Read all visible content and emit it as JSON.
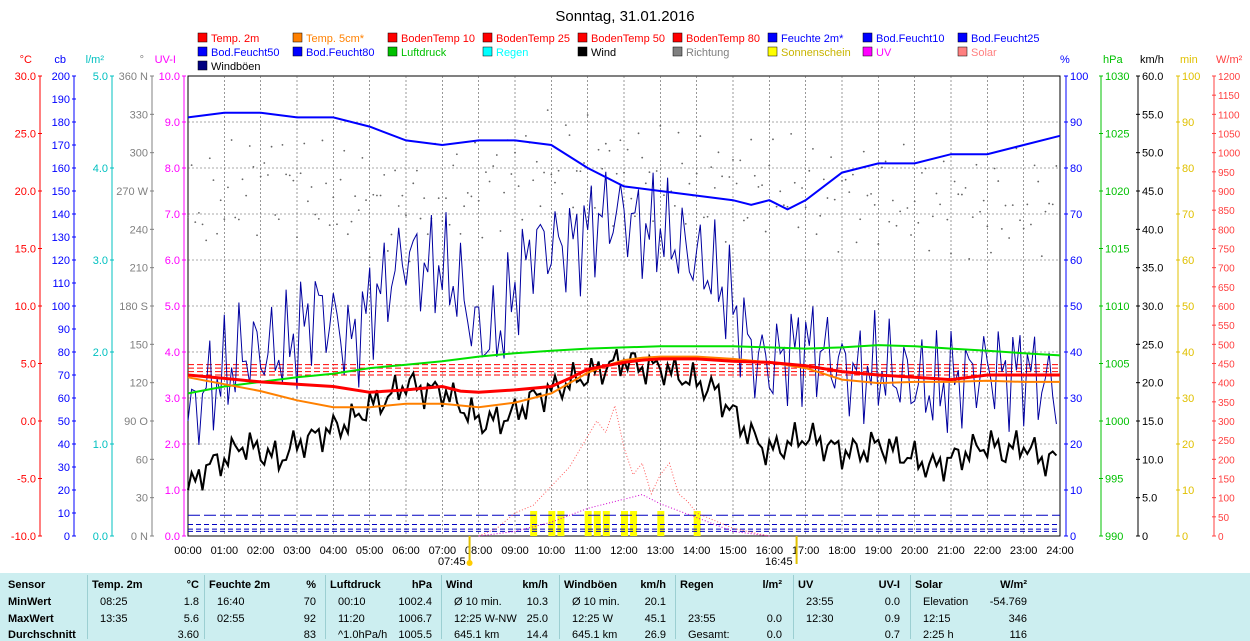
{
  "title": "Sonntag, 31.01.2016",
  "legend": [
    {
      "name": "Temp. 2m",
      "color": "#ff0000"
    },
    {
      "name": "Temp. 5cm*",
      "color": "#ff8000"
    },
    {
      "name": "BodenTemp 10",
      "color": "#ff0000"
    },
    {
      "name": "BodenTemp 25",
      "color": "#ff0000"
    },
    {
      "name": "BodenTemp 50",
      "color": "#ff0000"
    },
    {
      "name": "BodenTemp 80",
      "color": "#ff0000"
    },
    {
      "name": "Feuchte 2m*",
      "color": "#0000ff"
    },
    {
      "name": "Bod.Feucht10",
      "color": "#0000ff"
    },
    {
      "name": "Bod.Feucht25",
      "color": "#0000ff"
    },
    {
      "name": "Bod.Feucht50",
      "color": "#0000ff"
    },
    {
      "name": "Bod.Feucht80",
      "color": "#0000ff"
    },
    {
      "name": "Luftdruck",
      "color": "#00c000"
    },
    {
      "name": "Regen",
      "color": "#00ffff"
    },
    {
      "name": "Wind",
      "color": "#000000"
    },
    {
      "name": "Richtung",
      "color": "#808080"
    },
    {
      "name": "Sonnenschein",
      "color": "#ffff00"
    },
    {
      "name": "UV",
      "color": "#ff00ff"
    },
    {
      "name": "Solar",
      "color": "#ff8080"
    },
    {
      "name": "Windböen",
      "color": "#000080"
    }
  ],
  "axes_left": [
    {
      "unit": "°C",
      "color": "#ff0000",
      "ticks": [
        "30.0",
        "25.0",
        "20.0",
        "15.0",
        "10.0",
        "5.0",
        "0.0",
        "-5.0",
        "-10.0"
      ]
    },
    {
      "unit": "cb",
      "color": "#0000ff",
      "ticks": [
        "200",
        "190",
        "180",
        "170",
        "160",
        "150",
        "140",
        "130",
        "120",
        "110",
        "100",
        "90",
        "80",
        "70",
        "60",
        "50",
        "40",
        "30",
        "20",
        "10",
        "0"
      ]
    },
    {
      "unit": "l/m²",
      "color": "#00c0c0",
      "ticks": [
        "5.0",
        "4.0",
        "3.0",
        "2.0",
        "1.0",
        "0.0"
      ]
    },
    {
      "unit": "°",
      "color": "#808080",
      "ticks": [
        "360 N",
        "330",
        "300",
        "270 W",
        "240",
        "210",
        "180 S",
        "150",
        "120",
        "90 O",
        "60",
        "30",
        "0 N"
      ]
    },
    {
      "unit": "UV-I",
      "color": "#ff00ff",
      "ticks": [
        "10.0",
        "9.0",
        "8.0",
        "7.0",
        "6.0",
        "5.0",
        "4.0",
        "3.0",
        "2.0",
        "1.0",
        "0.0"
      ]
    }
  ],
  "axes_right": [
    {
      "unit": "%",
      "color": "#0000ff",
      "ticks": [
        "100",
        "90",
        "80",
        "70",
        "60",
        "50",
        "40",
        "30",
        "20",
        "10",
        "0"
      ]
    },
    {
      "unit": "hPa",
      "color": "#00c000",
      "ticks": [
        "1030",
        "1025",
        "1020",
        "1015",
        "1010",
        "1005",
        "1000",
        "995",
        "990"
      ]
    },
    {
      "unit": "km/h",
      "color": "#000000",
      "ticks": [
        "60.0",
        "55.0",
        "50.0",
        "45.0",
        "40.0",
        "35.0",
        "30.0",
        "25.0",
        "20.0",
        "15.0",
        "10.0",
        "5.0",
        "0"
      ]
    },
    {
      "unit": "min",
      "color": "#e0c000",
      "ticks": [
        "100",
        "90",
        "80",
        "70",
        "60",
        "50",
        "40",
        "30",
        "20",
        "10",
        "0"
      ]
    },
    {
      "unit": "W/m²",
      "color": "#ff4040",
      "ticks": [
        "1200",
        "1150",
        "1100",
        "1050",
        "1000",
        "950",
        "900",
        "850",
        "800",
        "750",
        "700",
        "650",
        "600",
        "550",
        "500",
        "450",
        "400",
        "350",
        "300",
        "250",
        "200",
        "150",
        "100",
        "50",
        "0"
      ]
    }
  ],
  "x_ticks": [
    "00:00",
    "01:00",
    "02:00",
    "03:00",
    "04:00",
    "05:00",
    "06:00",
    "07:00",
    "08:00",
    "09:00",
    "10:00",
    "11:00",
    "12:00",
    "13:00",
    "14:00",
    "15:00",
    "16:00",
    "17:00",
    "18:00",
    "19:00",
    "20:00",
    "21:00",
    "22:00",
    "23:00",
    "24:00"
  ],
  "sunrise": "07:45",
  "sunset": "16:45",
  "chart_data": {
    "type": "line",
    "title": "Sonntag, 31.01.2016",
    "x_unit": "hour",
    "x_range": [
      0,
      24
    ],
    "grid": true,
    "legend_position": "top",
    "series": [
      {
        "name": "Temp. 2m",
        "unit": "°C",
        "axis": "°C",
        "color": "#ff0000",
        "x": [
          0,
          1,
          2,
          3,
          4,
          5,
          6,
          7,
          7.5,
          8,
          9,
          10,
          10.5,
          11,
          11.5,
          12,
          12.5,
          13,
          14,
          15,
          16,
          17,
          18,
          19,
          20,
          21,
          22,
          23,
          24
        ],
        "y": [
          4.0,
          3.7,
          3.4,
          3.2,
          3.0,
          2.5,
          2.7,
          3.0,
          2.6,
          2.5,
          2.7,
          3.0,
          3.7,
          4.5,
          4.8,
          5.1,
          5.3,
          5.4,
          5.4,
          5.2,
          5.1,
          4.8,
          4.3,
          4.0,
          3.8,
          3.6,
          4.0,
          4.0,
          4.0
        ]
      },
      {
        "name": "Temp. 5cm*",
        "unit": "°C",
        "axis": "°C",
        "color": "#ff8000",
        "x": [
          0,
          1,
          2,
          3,
          4,
          5,
          6,
          7,
          8,
          9,
          10,
          10.5,
          11,
          11.5,
          12,
          12.5,
          13,
          14,
          15,
          16,
          17,
          18,
          19,
          20,
          21,
          22,
          23,
          24
        ],
        "y": [
          3.8,
          3.2,
          2.6,
          1.8,
          1.2,
          1.2,
          1.5,
          1.5,
          1.2,
          1.6,
          2.4,
          3.3,
          4.2,
          4.8,
          5.3,
          5.5,
          5.6,
          5.6,
          5.4,
          5.1,
          4.6,
          3.6,
          3.3,
          3.4,
          3.4,
          3.5,
          3.4,
          3.4
        ]
      },
      {
        "name": "BodenTemp 10",
        "unit": "°C",
        "axis": "°C",
        "color": "#ff0000",
        "x": [
          0,
          24
        ],
        "y": [
          4.9,
          4.9
        ]
      },
      {
        "name": "BodenTemp 25",
        "unit": "°C",
        "axis": "°C",
        "color": "#ff0000",
        "x": [
          0,
          24
        ],
        "y": [
          4.6,
          4.6
        ]
      },
      {
        "name": "BodenTemp 50",
        "unit": "°C",
        "axis": "°C",
        "color": "#ff0000",
        "x": [
          0,
          24
        ],
        "y": [
          4.3,
          4.3
        ]
      },
      {
        "name": "BodenTemp 80",
        "unit": "°C",
        "axis": "°C",
        "color": "#ff0000",
        "x": [
          0,
          24
        ],
        "y": [
          4.0,
          4.0
        ]
      },
      {
        "name": "Feuchte 2m*",
        "unit": "%",
        "axis": "%",
        "color": "#0000ff",
        "x": [
          0,
          1,
          2,
          3,
          4,
          4.5,
          5,
          6,
          7,
          8,
          9,
          10,
          11,
          12,
          13,
          14,
          15,
          15.5,
          16,
          16.5,
          17,
          18,
          19,
          20,
          21,
          22,
          23,
          24
        ],
        "y": [
          91,
          92,
          92,
          91,
          91,
          90,
          89,
          86,
          85,
          86,
          86,
          85,
          80,
          76,
          75,
          74,
          73,
          72,
          73,
          71,
          73,
          79,
          81,
          81,
          83,
          83,
          85,
          87
        ]
      },
      {
        "name": "Bod.Feucht10",
        "unit": "cb",
        "axis": "cb",
        "color": "#0000ff",
        "x": [
          0,
          24
        ],
        "y": [
          9,
          9
        ]
      },
      {
        "name": "Bod.Feucht25",
        "unit": "cb",
        "axis": "cb",
        "color": "#0000ff",
        "x": [
          0,
          24
        ],
        "y": [
          5,
          5
        ]
      },
      {
        "name": "Bod.Feucht50",
        "unit": "cb",
        "axis": "cb",
        "color": "#0000ff",
        "x": [
          0,
          24
        ],
        "y": [
          3,
          3
        ]
      },
      {
        "name": "Bod.Feucht80",
        "unit": "cb",
        "axis": "cb",
        "color": "#0000ff",
        "x": [
          0,
          24
        ],
        "y": [
          2,
          2
        ]
      },
      {
        "name": "Luftdruck",
        "unit": "hPa",
        "axis": "hPa",
        "color": "#00c000",
        "x": [
          0,
          1,
          2,
          3,
          4,
          5,
          6,
          7,
          8,
          9,
          10,
          11,
          12,
          13,
          14,
          15,
          16,
          17,
          18,
          19,
          20,
          21,
          22,
          23,
          24
        ],
        "y": [
          1002.4,
          1003.0,
          1003.4,
          1003.8,
          1004.1,
          1004.6,
          1004.9,
          1005.2,
          1005.6,
          1005.9,
          1006.1,
          1006.3,
          1006.4,
          1006.5,
          1006.5,
          1006.5,
          1006.4,
          1006.3,
          1006.4,
          1006.6,
          1006.5,
          1006.3,
          1006.1,
          1005.9,
          1005.7
        ]
      },
      {
        "name": "Wind",
        "unit": "km/h",
        "axis": "km/h",
        "color": "#000000",
        "x": [
          0,
          0.5,
          1,
          1.5,
          2,
          2.5,
          3,
          3.5,
          4,
          4.5,
          5,
          5.5,
          6,
          6.5,
          7,
          7.5,
          8,
          8.5,
          9,
          9.5,
          10,
          10.5,
          11,
          11.5,
          12,
          12.5,
          13,
          13.5,
          14,
          14.5,
          15,
          15.5,
          16,
          16.5,
          17,
          17.5,
          18,
          18.5,
          19,
          19.5,
          20,
          20.5,
          21,
          21.5,
          22,
          22.5,
          23,
          23.5,
          24
        ],
        "y": [
          6,
          9,
          10,
          12,
          11,
          10,
          12,
          13,
          14,
          15,
          17,
          18,
          20,
          19,
          19,
          17,
          15,
          15,
          16,
          18,
          19,
          20,
          21,
          22,
          23,
          22,
          22,
          21,
          20,
          19,
          16,
          13,
          11,
          12,
          13,
          12,
          11,
          11,
          12,
          11,
          10,
          9,
          10,
          11,
          12,
          11,
          12,
          10,
          10
        ]
      },
      {
        "name": "Windböen",
        "unit": "km/h",
        "axis": "km/h",
        "color": "#000080",
        "x": [
          0,
          0.5,
          1,
          1.5,
          2,
          2.5,
          3,
          3.5,
          4,
          4.5,
          5,
          5.5,
          6,
          6.5,
          7,
          7.5,
          8,
          8.5,
          9,
          9.5,
          10,
          10.5,
          11,
          11.5,
          12,
          12.5,
          13,
          13.5,
          14,
          14.5,
          15,
          15.5,
          16,
          16.5,
          17,
          17.5,
          18,
          18.5,
          19,
          19.5,
          20,
          20.5,
          21,
          21.5,
          22,
          22.5,
          23,
          23.5,
          24
        ],
        "y": [
          15,
          19,
          21,
          24,
          24,
          24,
          26,
          30,
          28,
          25,
          30,
          33,
          37,
          35,
          35,
          32,
          26,
          26,
          32,
          38,
          38,
          38,
          40,
          42,
          42,
          40,
          40,
          38,
          36,
          34,
          30,
          24,
          22,
          24,
          25,
          24,
          22,
          21,
          22,
          21,
          20,
          19,
          20,
          21,
          22,
          21,
          22,
          20,
          19
        ]
      },
      {
        "name": "Richtung",
        "unit": "°",
        "axis": "°",
        "color": "#808080",
        "x": [
          0,
          1,
          2,
          3,
          4,
          5,
          6,
          7,
          8,
          9,
          10,
          11,
          12,
          13,
          14,
          15,
          16,
          17,
          18,
          19,
          20,
          21,
          22,
          23,
          24
        ],
        "y": [
          250,
          265,
          280,
          275,
          265,
          260,
          255,
          265,
          270,
          285,
          290,
          290,
          285,
          280,
          275,
          275,
          275,
          270,
          265,
          265,
          260,
          260,
          255,
          260,
          255
        ]
      },
      {
        "name": "Solar",
        "unit": "W/m²",
        "axis": "W/m²",
        "color": "#ff8080",
        "x": [
          8,
          8.5,
          9,
          9.5,
          10,
          10.5,
          11,
          11.25,
          11.5,
          11.75,
          12,
          12.25,
          12.5,
          12.75,
          13,
          13.25,
          13.5,
          13.75,
          14,
          14.5,
          15,
          15.5,
          16
        ],
        "y": [
          0,
          20,
          60,
          80,
          130,
          180,
          260,
          300,
          270,
          340,
          230,
          160,
          190,
          110,
          160,
          190,
          110,
          90,
          60,
          40,
          20,
          10,
          0
        ]
      },
      {
        "name": "UV",
        "unit": "UV-I",
        "axis": "UV-I",
        "color": "#ff00ff",
        "x": [
          8,
          9,
          10,
          11,
          12,
          12.5,
          13,
          14,
          15,
          16
        ],
        "y": [
          0,
          0.1,
          0.3,
          0.6,
          0.8,
          0.9,
          0.7,
          0.4,
          0.1,
          0
        ]
      },
      {
        "name": "Sonnenschein",
        "unit": "min",
        "axis": "min",
        "color": "#ffff00",
        "x": [
          9.5,
          10,
          10.25,
          11,
          11.25,
          11.5,
          12,
          12.25,
          13,
          14
        ],
        "y": [
          5,
          5,
          5,
          5,
          5,
          5,
          5,
          5,
          5,
          5
        ]
      }
    ]
  },
  "stats": {
    "sensor_label": "Sensor",
    "row_labels": [
      "MinWert",
      "MaxWert",
      "Durchschnitt"
    ],
    "groups": [
      {
        "title": "Temp. 2m",
        "unit": "°C",
        "rows": [
          [
            "08:25",
            "1.8"
          ],
          [
            "13:35",
            "5.6"
          ],
          [
            "",
            "3.60"
          ]
        ]
      },
      {
        "title": "Feuchte 2m",
        "unit": "%",
        "rows": [
          [
            "16:40",
            "70"
          ],
          [
            "02:55",
            "92"
          ],
          [
            "",
            "83"
          ]
        ]
      },
      {
        "title": "Luftdruck",
        "unit": "hPa",
        "rows": [
          [
            "00:10",
            "1002.4"
          ],
          [
            "11:20",
            "1006.7"
          ],
          [
            "^1.0hPa/h",
            "1005.5"
          ]
        ]
      },
      {
        "title": "Wind",
        "unit": "km/h",
        "rows": [
          [
            "Ø 10 min.",
            "10.3"
          ],
          [
            "12:25   W-NW",
            "25.0"
          ],
          [
            "645.1 km",
            "14.4"
          ]
        ]
      },
      {
        "title": "Windböen",
        "unit": "km/h",
        "rows": [
          [
            "Ø 10 min.",
            "20.1"
          ],
          [
            "12:25   W",
            "45.1"
          ],
          [
            "645.1 km",
            "26.9"
          ]
        ]
      },
      {
        "title": "Regen",
        "unit": "l/m²",
        "rows": [
          [
            "",
            ""
          ],
          [
            "23:55",
            "0.0"
          ],
          [
            "Gesamt:",
            "0.0"
          ]
        ]
      },
      {
        "title": "UV",
        "unit": "UV-I",
        "rows": [
          [
            "23:55",
            "0.0"
          ],
          [
            "12:30",
            "0.9"
          ],
          [
            "",
            "0.7"
          ]
        ]
      },
      {
        "title": "Solar",
        "unit": "W/m²",
        "rows": [
          [
            "Elevation",
            "-54.769"
          ],
          [
            "12:15",
            "346"
          ],
          [
            "2:25 h",
            "116"
          ]
        ]
      }
    ]
  }
}
